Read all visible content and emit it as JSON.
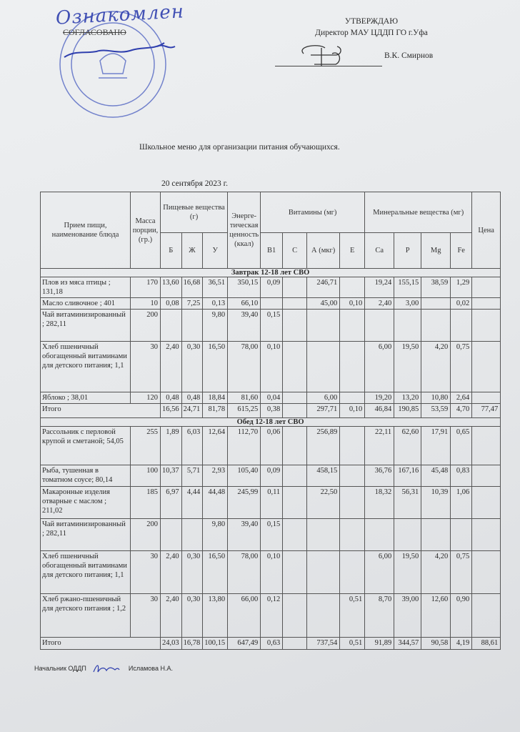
{
  "approval": {
    "line1": "УТВЕРЖДАЮ",
    "line2": "Директор МАУ ЦДДП ГО г.Уфа",
    "name": "В.К. Смирнов"
  },
  "agreement": {
    "label": "СОГЛАСОВАНО",
    "handwritten": "Ознакомлен"
  },
  "title": "Школьное меню для организации питания обучающихся.",
  "date": "20 сентября 2023 г.",
  "headers": {
    "dish": "Прием пищи, наименование блюда",
    "mass": "Массa порции, (гр.)",
    "nutrients": "Пищевые вещества (г)",
    "energy": "Энерге-тическая ценность (ккал)",
    "vitamins": "Витамины (мг)",
    "minerals": "Минеральные вещества (мг)",
    "price": "Цена",
    "sub": [
      "Б",
      "Ж",
      "У",
      "В1",
      "С",
      "А (мкг)",
      "Е",
      "Ca",
      "P",
      "Mg",
      "Fe"
    ]
  },
  "sections": [
    {
      "title": "Завтрак 12-18 лет СВО",
      "rows": [
        [
          "Плов из мяса птицы ; 131,18",
          "170",
          "13,60",
          "16,68",
          "36,51",
          "350,15",
          "0,09",
          "",
          "246,71",
          "",
          "19,24",
          "155,15",
          "38,59",
          "1,29",
          ""
        ],
        [
          "Масло сливочное ; 401",
          "10",
          "0,08",
          "7,25",
          "0,13",
          "66,10",
          "",
          "",
          "45,00",
          "0,10",
          "2,40",
          "3,00",
          "",
          "0,02",
          ""
        ],
        [
          "Чай витаминизированный ; 282,11",
          "200",
          "",
          "",
          "9,80",
          "39,40",
          "0,15",
          "",
          "",
          "",
          "",
          "",
          "",
          "",
          ""
        ],
        [
          "Хлеб пшеничный обогащенный витаминами для детского питания; 1,1",
          "30",
          "2,40",
          "0,30",
          "16,50",
          "78,00",
          "0,10",
          "",
          "",
          "",
          "6,00",
          "19,50",
          "4,20",
          "0,75",
          ""
        ],
        [
          "Яблоко ; 38,01",
          "120",
          "0,48",
          "0,48",
          "18,84",
          "81,60",
          "0,04",
          "",
          "6,00",
          "",
          "19,20",
          "13,20",
          "10,80",
          "2,64",
          ""
        ],
        [
          "Итого",
          "",
          "16,56",
          "24,71",
          "81,78",
          "615,25",
          "0,38",
          "",
          "297,71",
          "0,10",
          "46,84",
          "190,85",
          "53,59",
          "4,70",
          "77,47"
        ]
      ]
    },
    {
      "title": "Обед 12-18 лет СВО",
      "rows": [
        [
          "Рассольник с перловой крупой и сметаной; 54,05",
          "255",
          "1,89",
          "6,03",
          "12,64",
          "112,70",
          "0,06",
          "",
          "256,89",
          "",
          "22,11",
          "62,60",
          "17,91",
          "0,65",
          ""
        ],
        [
          "Рыба, тушенная в томатном соусе; 80,14",
          "100",
          "10,37",
          "5,71",
          "2,93",
          "105,40",
          "0,09",
          "",
          "458,15",
          "",
          "36,76",
          "167,16",
          "45,48",
          "0,83",
          ""
        ],
        [
          "Макаронные изделия отварные с маслом ; 211,02",
          "185",
          "6,97",
          "4,44",
          "44,48",
          "245,99",
          "0,11",
          "",
          "22,50",
          "",
          "18,32",
          "56,31",
          "10,39",
          "1,06",
          ""
        ],
        [
          "Чай витаминизированный ; 282,11",
          "200",
          "",
          "",
          "9,80",
          "39,40",
          "0,15",
          "",
          "",
          "",
          "",
          "",
          "",
          "",
          ""
        ],
        [
          "Хлеб пшеничный обогащенный витаминами для детского питания; 1,1",
          "30",
          "2,40",
          "0,30",
          "16,50",
          "78,00",
          "0,10",
          "",
          "",
          "",
          "6,00",
          "19,50",
          "4,20",
          "0,75",
          ""
        ],
        [
          "Хлеб ржано-пшеничный для детского питания ; 1,2",
          "30",
          "2,40",
          "0,30",
          "13,80",
          "66,00",
          "0,12",
          "",
          "",
          "0,51",
          "8,70",
          "39,00",
          "12,60",
          "0,90",
          ""
        ],
        [
          "Итого",
          "",
          "24,03",
          "16,78",
          "100,15",
          "647,49",
          "0,63",
          "",
          "737,54",
          "0,51",
          "91,89",
          "344,57",
          "90,58",
          "4,19",
          "88,61"
        ]
      ]
    }
  ],
  "footer": {
    "position": "Начальник ОДДП",
    "name": "Исламова Н.А."
  },
  "colors": {
    "ink": "#2a2a2a",
    "stamp": "#3a4fb8",
    "paper": "#e8eaec"
  }
}
